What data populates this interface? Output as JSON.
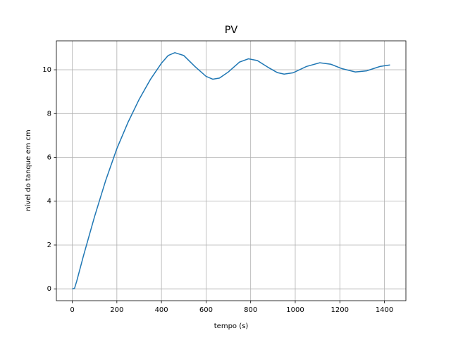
{
  "chart_data": {
    "type": "line",
    "title": "PV",
    "x_label": "tempo (s)",
    "y_label": "nível do tanque em cm",
    "x": [
      0,
      10,
      20,
      50,
      100,
      150,
      200,
      250,
      300,
      350,
      400,
      430,
      460,
      500,
      550,
      600,
      630,
      660,
      700,
      750,
      790,
      830,
      880,
      920,
      950,
      990,
      1050,
      1110,
      1160,
      1210,
      1270,
      1320,
      1380,
      1425
    ],
    "series": [
      {
        "name": "PV",
        "color": "#1f77b4",
        "values": [
          0,
          0.02,
          0.35,
          1.5,
          3.3,
          4.95,
          6.4,
          7.6,
          8.65,
          9.55,
          10.3,
          10.65,
          10.78,
          10.65,
          10.15,
          9.7,
          9.57,
          9.62,
          9.9,
          10.35,
          10.5,
          10.42,
          10.1,
          9.87,
          9.8,
          9.86,
          10.15,
          10.32,
          10.25,
          10.05,
          9.9,
          9.95,
          10.15,
          10.22
        ]
      }
    ],
    "xlim": [
      -71.25,
      1496.25
    ],
    "ylim": [
      -0.54,
      11.32
    ],
    "xticks": [
      0,
      200,
      400,
      600,
      800,
      1000,
      1200,
      1400
    ],
    "yticks": [
      0,
      2,
      4,
      6,
      8,
      10
    ],
    "grid": true
  }
}
